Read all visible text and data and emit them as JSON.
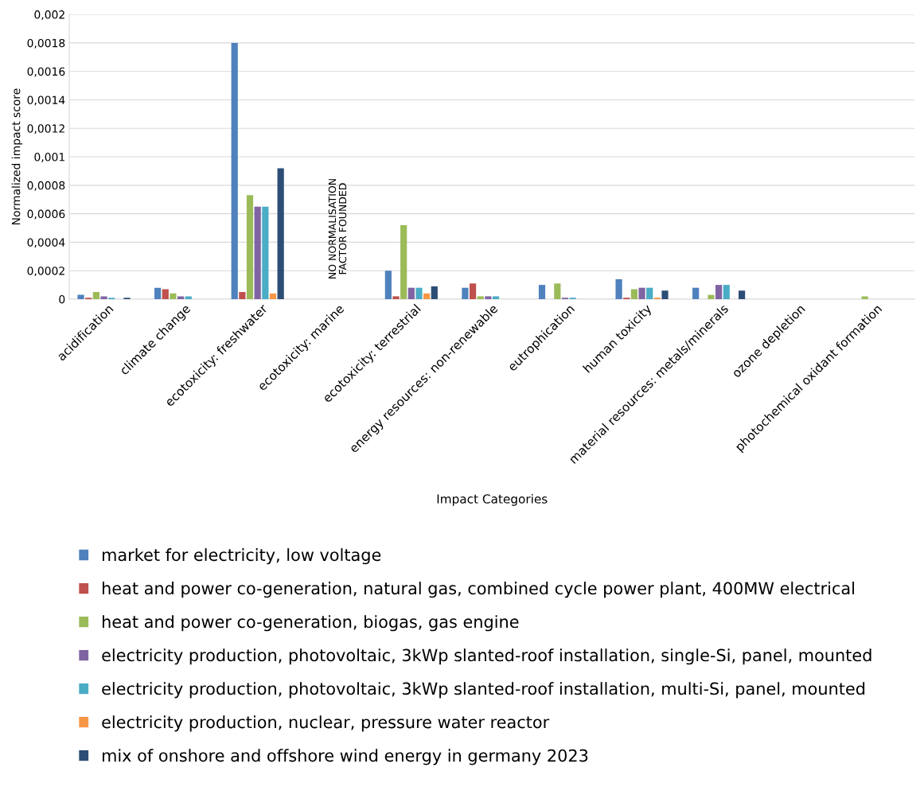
{
  "chart_data": {
    "type": "bar",
    "categories": [
      "acidification",
      "climate change",
      "ecotoxicity: freshwater",
      "ecotoxicity: marine",
      "ecotoxicity: terrestrial",
      "energy resources: non-renewable",
      "eutrophication",
      "human toxicity",
      "material resources: metals/minerals",
      "ozone depletion",
      "photochemical oxidant formation"
    ],
    "series": [
      {
        "name": "market for electricity, low voltage",
        "color": "#4f81bd",
        "values": [
          3e-05,
          8e-05,
          0.0018,
          null,
          0.0002,
          8e-05,
          0.0001,
          0.00014,
          8e-05,
          0,
          0
        ]
      },
      {
        "name": "heat and power co-generation, natural gas, combined cycle power plant, 400MW electrical",
        "color": "#c0504d",
        "values": [
          1e-05,
          7e-05,
          5e-05,
          null,
          2e-05,
          0.00011,
          0,
          1e-05,
          0,
          0,
          0
        ]
      },
      {
        "name": "heat and power co-generation, biogas, gas engine",
        "color": "#9bbb59",
        "values": [
          5e-05,
          4e-05,
          0.00073,
          null,
          0.00052,
          2e-05,
          0.00011,
          7e-05,
          3e-05,
          0,
          2e-05
        ]
      },
      {
        "name": "electricity production, photovoltaic, 3kWp slanted-roof installation, single-Si, panel, mounted",
        "color": "#8064a2",
        "values": [
          2e-05,
          2e-05,
          0.00065,
          null,
          8e-05,
          2e-05,
          1e-05,
          8e-05,
          0.0001,
          0,
          0
        ]
      },
      {
        "name": "electricity production, photovoltaic, 3kWp slanted-roof installation, multi-Si, panel, mounted",
        "color": "#4bacc6",
        "values": [
          1e-05,
          2e-05,
          0.00065,
          null,
          8e-05,
          2e-05,
          1e-05,
          8e-05,
          0.0001,
          0,
          0
        ]
      },
      {
        "name": "electricity production, nuclear, pressure water reactor",
        "color": "#f79646",
        "values": [
          0,
          0,
          4e-05,
          null,
          4e-05,
          0,
          0,
          1e-05,
          0,
          0,
          0
        ]
      },
      {
        "name": "mix of onshore and offshore wind energy in germany 2023",
        "color": "#2c4d75",
        "values": [
          1e-05,
          0,
          0.00092,
          null,
          9e-05,
          0,
          0,
          6e-05,
          6e-05,
          0,
          0
        ]
      }
    ],
    "ylabel": "Normalized impact score",
    "xlabel": "Impact Categories",
    "ylim": [
      0,
      0.002
    ],
    "yticks": [
      0,
      {
        "value": 0.0002,
        "label": "0,0002"
      },
      {
        "value": 0.0004,
        "label": "0,0004"
      },
      {
        "value": 0.0006,
        "label": "0,0006"
      },
      {
        "value": 0.0008,
        "label": "0,0008"
      },
      {
        "value": 0.001,
        "label": "0,001"
      },
      {
        "value": 0.0012,
        "label": "0,0012"
      },
      {
        "value": 0.0014,
        "label": "0,0014"
      },
      {
        "value": 0.0016,
        "label": "0,0016"
      },
      {
        "value": 0.0018,
        "label": "0,0018"
      },
      {
        "value": 0.002,
        "label": "0,002"
      }
    ],
    "annotations": [
      "NO NORMALISATION\nFACTOR FOUNDED"
    ],
    "grid": "y",
    "legend": "bottom"
  }
}
